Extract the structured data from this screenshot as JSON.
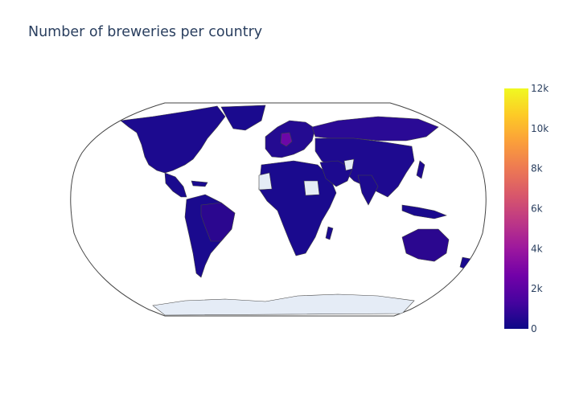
{
  "title": "Number of breweries per country",
  "colorbar": {
    "tick_labels": [
      "0",
      "2k",
      "4k",
      "6k",
      "8k",
      "10k",
      "12k"
    ],
    "tick_values": [
      0,
      2000,
      4000,
      6000,
      8000,
      10000,
      12000
    ],
    "range": [
      0,
      12000
    ],
    "colorscale": [
      "#0d0887",
      "#46039f",
      "#7201a8",
      "#9c179e",
      "#bd3786",
      "#d8576b",
      "#ed7953",
      "#fb9f3a",
      "#fdca26",
      "#f0f921"
    ]
  },
  "colors": {
    "ocean_outline": "#444444",
    "border": "#444444",
    "no_data_fill": "#e5ecf6",
    "title_text": "#2a3f5f"
  },
  "chart_data": {
    "type": "choropleth",
    "projection": "robinson",
    "title": "Number of breweries per country",
    "colorbar_range": [
      0,
      12000
    ],
    "regions_shaded": [
      {
        "region": "Germany",
        "level": "~1800"
      },
      {
        "region": "Most other countries",
        "level": "0–1000"
      }
    ],
    "no_data_regions": [
      "Antarctica",
      "Western Sahara area",
      "Sudan",
      "Yemen"
    ]
  }
}
